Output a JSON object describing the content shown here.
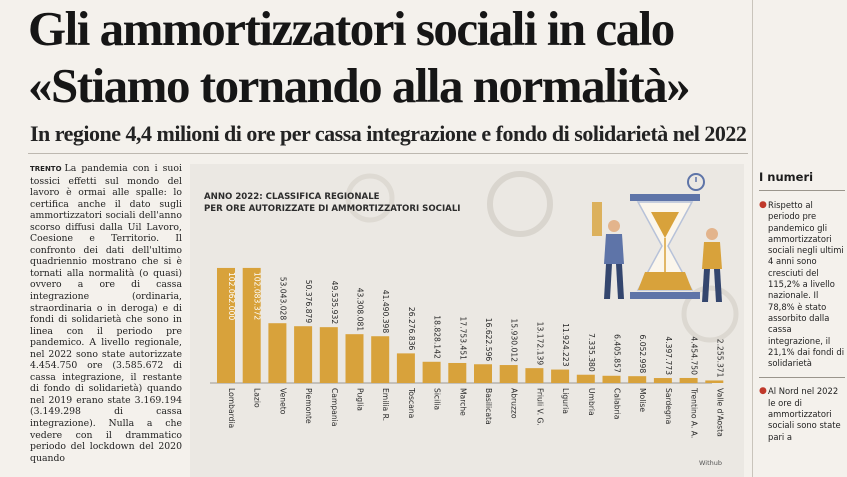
{
  "article": {
    "headline_line1": "Gli ammortizzatori sociali in calo",
    "headline_line2": "«Stiamo tornando alla normalità»",
    "subheadline": "In regione 4,4 milioni di ore per cassa integrazione e fondo di solidarietà nel 2022",
    "dateline": "TRENTO",
    "body": "La pandemia con i suoi tossici effetti sul mondo del lavoro è ormai alle spalle: lo certifica anche il dato sugli ammortizzatori sociali dell'anno scorso diffusi dalla Uil Lavoro, Coesione e Territorio. Il confronto dei dati dell'ultimo quadriennio mostrano che si è tornati alla normalità (o quasi) ovvero a ore di cassa integrazione (ordinaria, straordinaria o in deroga) e di fondi di solidarietà che sono in linea con il periodo pre pandemico. A livello regionale, nel 2022 sono state autorizzate 4.454.750 ore (3.585.672 di cassa integrazione, il restante di fondo di solidarietà) quando nel 2019 erano state 3.169.194 (3.149.298 di cassa integrazione). Nulla a che vedere con il drammatico periodo del lockdown del 2020 quando"
  },
  "sidebar": {
    "title": "I numeri",
    "items": [
      "Rispetto al periodo pre pandemico gli ammortizzatori sociali negli ultimi 4 anni sono cresciuti del 115,2% a livello nazionale. Il 78,8% è stato assorbito dalla cassa integrazione, il 21,1% dai fondi di solidarietà",
      "Al Nord nel 2022 le ore di ammortizzatori sociali sono state pari a"
    ]
  },
  "chart_data": {
    "type": "bar",
    "title_line1": "ANNO 2022: CLASSIFICA REGIONALE",
    "title_line2": "PER ORE AUTORIZZATE DI AMMORTIZZATORI SOCIALI",
    "credit": "Withub",
    "categories": [
      "Lombardia",
      "Lazio",
      "Veneto",
      "Piemonte",
      "Campania",
      "Puglia",
      "Emilia R.",
      "Toscana",
      "Sicilia",
      "Marche",
      "Basilicata",
      "Abruzzo",
      "Friuli V. G.",
      "Liguria",
      "Umbria",
      "Calabria",
      "Molise",
      "Sardegna",
      "Trentino A. A.",
      "Valle d'Aosta"
    ],
    "values": [
      102062000,
      102083372,
      53043028,
      50376879,
      49535932,
      43308081,
      41490398,
      26276836,
      18828142,
      17753451,
      16622596,
      15930012,
      13172139,
      11924223,
      7335380,
      6405857,
      6052998,
      4397773,
      4454750,
      2255371
    ],
    "labels": [
      "102.062.000",
      "102.083.372",
      "53.043.028",
      "50.376.879",
      "49.535.932",
      "43.308.081",
      "41.490.398",
      "26.276.836",
      "18.828.142",
      "17.753.451",
      "16.622.596",
      "15.930.012",
      "13.172.139",
      "11.924.223",
      "7.335.380",
      "6.405.857",
      "6.052.998",
      "4.397.773",
      "4.454.750",
      "2.255.371"
    ],
    "ylim": [
      0,
      110000000
    ],
    "bar_color": "#d8a23b",
    "grid": false,
    "legend": "none"
  }
}
